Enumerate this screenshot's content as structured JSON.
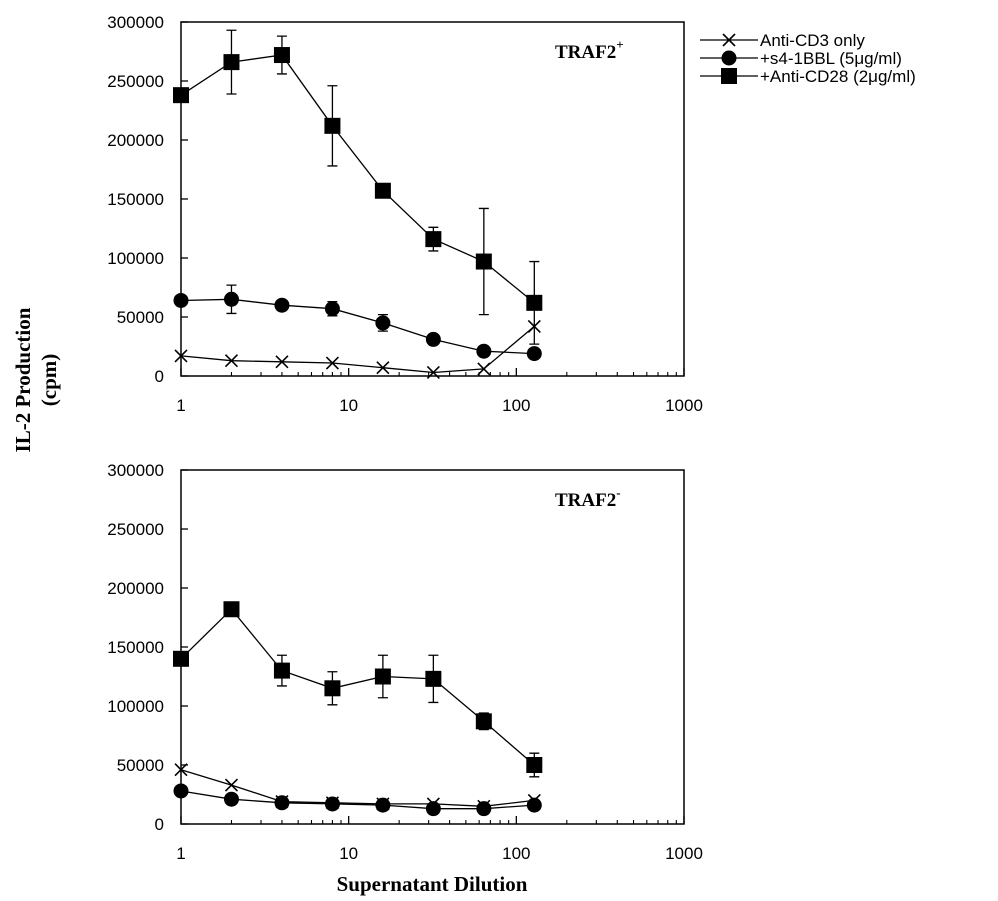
{
  "chart_data": [
    {
      "type": "line",
      "title": "TRAF2+",
      "title_base": "TRAF2",
      "title_sup": "+",
      "xlabel": "",
      "ylabel": "IL-2 Production (cpm)",
      "x_scale": "log",
      "xlim": [
        1,
        1000
      ],
      "ylim": [
        0,
        300000
      ],
      "x": [
        1,
        2,
        4,
        8,
        16,
        32,
        64,
        128
      ],
      "x_ticks": [
        1,
        10,
        100,
        1000
      ],
      "y_ticks": [
        0,
        50000,
        100000,
        150000,
        200000,
        250000,
        300000
      ],
      "series": [
        {
          "name": "Anti-CD3 only",
          "marker": "x",
          "values": [
            17000,
            13000,
            12000,
            11000,
            7000,
            3000,
            6000,
            42000
          ],
          "errors": [
            0,
            0,
            0,
            0,
            0,
            0,
            0,
            0
          ]
        },
        {
          "name": "+s4-1BBL (5μg/ml)",
          "marker": "circle",
          "values": [
            64000,
            65000,
            60000,
            57000,
            45000,
            31000,
            21000,
            19000
          ],
          "errors": [
            0,
            12000,
            0,
            6000,
            7000,
            0,
            0,
            0
          ]
        },
        {
          "name": "+Anti-CD28 (2μg/ml)",
          "marker": "square",
          "values": [
            238000,
            266000,
            272000,
            212000,
            157000,
            116000,
            97000,
            62000
          ],
          "errors": [
            0,
            27000,
            16000,
            34000,
            0,
            10000,
            45000,
            35000
          ]
        }
      ]
    },
    {
      "type": "line",
      "title": "TRAF2-",
      "title_base": "TRAF2",
      "title_sup": "-",
      "xlabel": "Supernatant Dilution",
      "ylabel": "IL-2 Production (cpm)",
      "x_scale": "log",
      "xlim": [
        1,
        1000
      ],
      "ylim": [
        0,
        300000
      ],
      "x": [
        1,
        2,
        4,
        8,
        16,
        32,
        64,
        128
      ],
      "x_ticks": [
        1,
        10,
        100,
        1000
      ],
      "y_ticks": [
        0,
        50000,
        100000,
        150000,
        200000,
        250000,
        300000
      ],
      "series": [
        {
          "name": "Anti-CD3 only",
          "marker": "x",
          "values": [
            46000,
            33000,
            19000,
            18000,
            17000,
            17000,
            15000,
            20000
          ],
          "errors": [
            0,
            0,
            0,
            0,
            0,
            0,
            0,
            0
          ]
        },
        {
          "name": "+s4-1BBL (5μg/ml)",
          "marker": "circle",
          "values": [
            28000,
            21000,
            18000,
            17000,
            16000,
            13000,
            13000,
            16000
          ],
          "errors": [
            0,
            0,
            0,
            0,
            0,
            0,
            0,
            0
          ]
        },
        {
          "name": "+Anti-CD28 (2μg/ml)",
          "marker": "square",
          "values": [
            140000,
            182000,
            130000,
            115000,
            125000,
            123000,
            87000,
            50000
          ],
          "errors": [
            0,
            0,
            13000,
            14000,
            18000,
            20000,
            7000,
            10000
          ]
        }
      ]
    }
  ],
  "shared": {
    "ylabel_line1": "IL-2 Production",
    "ylabel_line2": "(cpm)"
  },
  "legend": {
    "placement": "right-of-top-panel",
    "entries": [
      {
        "label": "Anti-CD3 only",
        "marker": "x"
      },
      {
        "label": "+s4-1BBL (5μg/ml)",
        "marker": "circle"
      },
      {
        "label": "+Anti-CD28 (2μg/ml)",
        "marker": "square"
      }
    ]
  }
}
